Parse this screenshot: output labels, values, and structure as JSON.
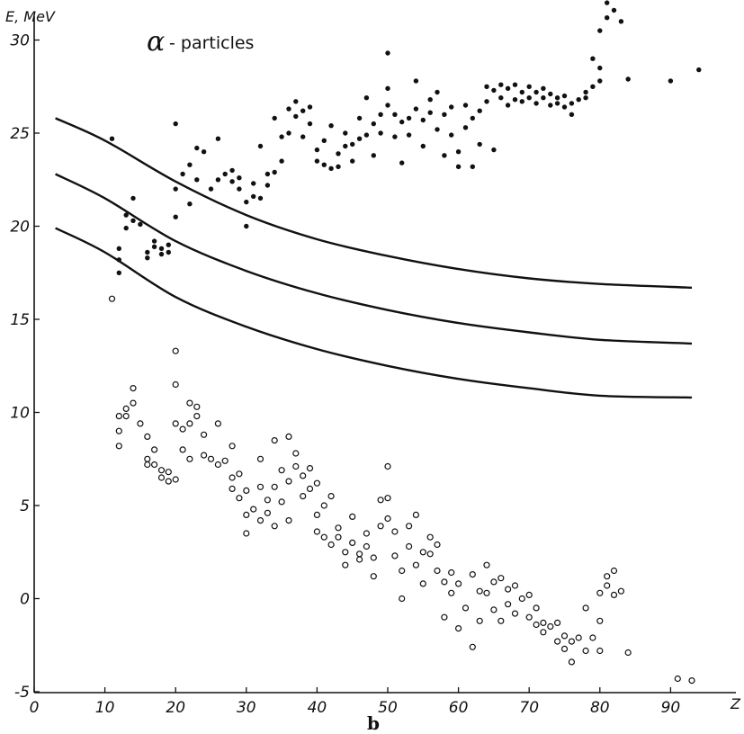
{
  "chart_data": {
    "type": "scatter",
    "title": "",
    "xlabel": "Z",
    "ylabel": "E, MeV",
    "caption": "b",
    "xlim": [
      0,
      95
    ],
    "ylim": [
      -5,
      32
    ],
    "x_ticks": [
      "0",
      "10",
      "20",
      "30",
      "40",
      "50",
      "60",
      "70",
      "80",
      "90"
    ],
    "y_ticks": [
      "-5",
      "0",
      "5",
      "10",
      "15",
      "20",
      "25",
      "30"
    ],
    "grid": false,
    "annotation": {
      "symbol": "α",
      "text": "- particles"
    },
    "series": [
      {
        "marker": "filled-circle",
        "points": [
          [
            11,
            24.7
          ],
          [
            12,
            17.5
          ],
          [
            12,
            18.2
          ],
          [
            12,
            18.8
          ],
          [
            13,
            19.9
          ],
          [
            13,
            20.6
          ],
          [
            14,
            21.5
          ],
          [
            14,
            20.3
          ],
          [
            15,
            20.1
          ],
          [
            16,
            18.3
          ],
          [
            16,
            18.6
          ],
          [
            17,
            18.9
          ],
          [
            17,
            19.2
          ],
          [
            18,
            18.5
          ],
          [
            18,
            18.8
          ],
          [
            19,
            18.6
          ],
          [
            19,
            19.0
          ],
          [
            20,
            20.5
          ],
          [
            20,
            22.0
          ],
          [
            20,
            25.5
          ],
          [
            21,
            22.8
          ],
          [
            22,
            21.2
          ],
          [
            22,
            23.3
          ],
          [
            23,
            22.5
          ],
          [
            23,
            24.2
          ],
          [
            24,
            24.0
          ],
          [
            25,
            22.0
          ],
          [
            26,
            22.5
          ],
          [
            26,
            24.7
          ],
          [
            27,
            22.8
          ],
          [
            28,
            22.4
          ],
          [
            28,
            23.0
          ],
          [
            29,
            22.0
          ],
          [
            29,
            22.6
          ],
          [
            30,
            20.0
          ],
          [
            30,
            21.3
          ],
          [
            31,
            21.6
          ],
          [
            31,
            22.3
          ],
          [
            32,
            21.5
          ],
          [
            32,
            24.3
          ],
          [
            33,
            22.2
          ],
          [
            33,
            22.8
          ],
          [
            34,
            22.9
          ],
          [
            34,
            25.8
          ],
          [
            35,
            23.5
          ],
          [
            35,
            24.8
          ],
          [
            36,
            26.3
          ],
          [
            36,
            25.0
          ],
          [
            37,
            26.7
          ],
          [
            37,
            25.9
          ],
          [
            38,
            26.2
          ],
          [
            38,
            24.8
          ],
          [
            39,
            26.4
          ],
          [
            39,
            25.5
          ],
          [
            40,
            23.5
          ],
          [
            40,
            24.1
          ],
          [
            41,
            23.3
          ],
          [
            41,
            24.6
          ],
          [
            42,
            23.1
          ],
          [
            42,
            25.4
          ],
          [
            43,
            23.9
          ],
          [
            43,
            23.2
          ],
          [
            44,
            24.3
          ],
          [
            44,
            25.0
          ],
          [
            45,
            23.5
          ],
          [
            45,
            24.4
          ],
          [
            46,
            24.7
          ],
          [
            46,
            25.8
          ],
          [
            47,
            26.9
          ],
          [
            47,
            24.9
          ],
          [
            48,
            25.5
          ],
          [
            48,
            23.8
          ],
          [
            49,
            26.0
          ],
          [
            49,
            25.0
          ],
          [
            50,
            29.3
          ],
          [
            50,
            27.4
          ],
          [
            50,
            26.5
          ],
          [
            51,
            26.0
          ],
          [
            51,
            24.8
          ],
          [
            52,
            25.6
          ],
          [
            52,
            23.4
          ],
          [
            53,
            24.9
          ],
          [
            53,
            25.8
          ],
          [
            54,
            27.8
          ],
          [
            54,
            26.3
          ],
          [
            55,
            25.7
          ],
          [
            55,
            24.3
          ],
          [
            56,
            26.8
          ],
          [
            56,
            26.1
          ],
          [
            57,
            27.2
          ],
          [
            57,
            25.2
          ],
          [
            58,
            26.0
          ],
          [
            58,
            23.8
          ],
          [
            59,
            26.4
          ],
          [
            59,
            24.9
          ],
          [
            60,
            24.0
          ],
          [
            60,
            23.2
          ],
          [
            61,
            26.5
          ],
          [
            61,
            25.3
          ],
          [
            62,
            23.2
          ],
          [
            62,
            25.8
          ],
          [
            63,
            26.2
          ],
          [
            63,
            24.4
          ],
          [
            64,
            27.5
          ],
          [
            64,
            26.7
          ],
          [
            65,
            27.3
          ],
          [
            65,
            24.1
          ],
          [
            66,
            27.6
          ],
          [
            66,
            26.9
          ],
          [
            67,
            27.4
          ],
          [
            67,
            26.5
          ],
          [
            68,
            27.6
          ],
          [
            68,
            26.8
          ],
          [
            69,
            27.2
          ],
          [
            69,
            26.7
          ],
          [
            70,
            27.5
          ],
          [
            70,
            26.9
          ],
          [
            71,
            27.2
          ],
          [
            71,
            26.6
          ],
          [
            72,
            27.4
          ],
          [
            72,
            26.9
          ],
          [
            73,
            27.1
          ],
          [
            73,
            26.5
          ],
          [
            74,
            26.9
          ],
          [
            74,
            26.6
          ],
          [
            75,
            27.0
          ],
          [
            75,
            26.4
          ],
          [
            76,
            26.6
          ],
          [
            76,
            26.0
          ],
          [
            77,
            26.8
          ],
          [
            78,
            27.2
          ],
          [
            78,
            26.9
          ],
          [
            79,
            29.0
          ],
          [
            79,
            27.5
          ],
          [
            80,
            27.8
          ],
          [
            80,
            28.5
          ],
          [
            80,
            30.5
          ],
          [
            81,
            31.2
          ],
          [
            81,
            32.0
          ],
          [
            82,
            32.5
          ],
          [
            82,
            31.6
          ],
          [
            83,
            31.0
          ],
          [
            84,
            27.9
          ],
          [
            90,
            27.8
          ],
          [
            94,
            28.4
          ]
        ]
      },
      {
        "marker": "open-circle",
        "points": [
          [
            11,
            16.1
          ],
          [
            12,
            9.8
          ],
          [
            12,
            8.2
          ],
          [
            12,
            9.0
          ],
          [
            13,
            10.2
          ],
          [
            13,
            9.8
          ],
          [
            14,
            11.3
          ],
          [
            14,
            10.5
          ],
          [
            15,
            9.4
          ],
          [
            16,
            8.7
          ],
          [
            16,
            7.5
          ],
          [
            16,
            7.2
          ],
          [
            17,
            7.2
          ],
          [
            17,
            8.0
          ],
          [
            18,
            6.9
          ],
          [
            18,
            6.5
          ],
          [
            19,
            6.8
          ],
          [
            19,
            6.3
          ],
          [
            20,
            6.4
          ],
          [
            20,
            9.4
          ],
          [
            20,
            11.5
          ],
          [
            20,
            13.3
          ],
          [
            21,
            8.0
          ],
          [
            21,
            9.1
          ],
          [
            22,
            10.5
          ],
          [
            22,
            9.4
          ],
          [
            22,
            7.5
          ],
          [
            23,
            10.3
          ],
          [
            23,
            9.8
          ],
          [
            24,
            8.8
          ],
          [
            24,
            7.7
          ],
          [
            25,
            7.5
          ],
          [
            26,
            9.4
          ],
          [
            26,
            7.2
          ],
          [
            27,
            7.4
          ],
          [
            28,
            8.2
          ],
          [
            28,
            6.5
          ],
          [
            28,
            5.9
          ],
          [
            29,
            6.7
          ],
          [
            29,
            5.4
          ],
          [
            30,
            4.5
          ],
          [
            30,
            3.5
          ],
          [
            30,
            5.8
          ],
          [
            31,
            4.8
          ],
          [
            32,
            6.0
          ],
          [
            32,
            4.2
          ],
          [
            32,
            7.5
          ],
          [
            33,
            5.3
          ],
          [
            33,
            4.6
          ],
          [
            34,
            8.5
          ],
          [
            34,
            6.0
          ],
          [
            34,
            3.9
          ],
          [
            35,
            6.9
          ],
          [
            35,
            5.2
          ],
          [
            36,
            8.7
          ],
          [
            36,
            6.3
          ],
          [
            36,
            4.2
          ],
          [
            37,
            7.8
          ],
          [
            37,
            7.1
          ],
          [
            38,
            6.6
          ],
          [
            38,
            5.5
          ],
          [
            39,
            7.0
          ],
          [
            39,
            5.9
          ],
          [
            40,
            6.2
          ],
          [
            40,
            4.5
          ],
          [
            40,
            3.6
          ],
          [
            41,
            5.0
          ],
          [
            41,
            3.3
          ],
          [
            42,
            5.5
          ],
          [
            42,
            2.9
          ],
          [
            43,
            3.8
          ],
          [
            43,
            3.3
          ],
          [
            44,
            2.5
          ],
          [
            44,
            1.8
          ],
          [
            45,
            4.4
          ],
          [
            45,
            3.0
          ],
          [
            46,
            2.4
          ],
          [
            46,
            2.1
          ],
          [
            47,
            3.5
          ],
          [
            47,
            2.8
          ],
          [
            48,
            2.2
          ],
          [
            48,
            1.2
          ],
          [
            49,
            5.3
          ],
          [
            49,
            3.9
          ],
          [
            50,
            7.1
          ],
          [
            50,
            5.4
          ],
          [
            50,
            4.3
          ],
          [
            51,
            3.6
          ],
          [
            51,
            2.3
          ],
          [
            52,
            0.0
          ],
          [
            52,
            1.5
          ],
          [
            53,
            3.9
          ],
          [
            53,
            2.8
          ],
          [
            54,
            4.5
          ],
          [
            54,
            1.8
          ],
          [
            55,
            2.5
          ],
          [
            55,
            0.8
          ],
          [
            56,
            3.3
          ],
          [
            56,
            2.4
          ],
          [
            57,
            2.9
          ],
          [
            57,
            1.5
          ],
          [
            58,
            0.9
          ],
          [
            58,
            -1.0
          ],
          [
            59,
            1.4
          ],
          [
            59,
            0.3
          ],
          [
            60,
            0.8
          ],
          [
            60,
            -1.6
          ],
          [
            61,
            -0.5
          ],
          [
            62,
            1.3
          ],
          [
            62,
            -2.6
          ],
          [
            63,
            0.4
          ],
          [
            63,
            -1.2
          ],
          [
            64,
            1.8
          ],
          [
            64,
            0.3
          ],
          [
            65,
            0.9
          ],
          [
            65,
            -0.6
          ],
          [
            66,
            1.1
          ],
          [
            66,
            -1.2
          ],
          [
            67,
            0.5
          ],
          [
            67,
            -0.3
          ],
          [
            68,
            0.7
          ],
          [
            68,
            -0.8
          ],
          [
            69,
            0.0
          ],
          [
            70,
            0.2
          ],
          [
            70,
            -1.0
          ],
          [
            71,
            -0.5
          ],
          [
            71,
            -1.4
          ],
          [
            72,
            -1.3
          ],
          [
            72,
            -1.8
          ],
          [
            73,
            -1.5
          ],
          [
            74,
            -1.3
          ],
          [
            74,
            -2.3
          ],
          [
            75,
            -2.0
          ],
          [
            75,
            -2.7
          ],
          [
            76,
            -3.4
          ],
          [
            76,
            -2.3
          ],
          [
            77,
            -2.1
          ],
          [
            78,
            -2.8
          ],
          [
            78,
            -0.5
          ],
          [
            79,
            -2.1
          ],
          [
            80,
            -2.8
          ],
          [
            80,
            0.3
          ],
          [
            80,
            -1.2
          ],
          [
            81,
            1.2
          ],
          [
            81,
            0.7
          ],
          [
            82,
            1.5
          ],
          [
            82,
            0.2
          ],
          [
            83,
            0.4
          ],
          [
            84,
            -2.9
          ],
          [
            91,
            -4.3
          ],
          [
            93,
            -4.4
          ]
        ]
      }
    ],
    "curves": [
      {
        "points": [
          [
            3,
            25.8
          ],
          [
            10,
            24.6
          ],
          [
            20,
            22.4
          ],
          [
            30,
            20.6
          ],
          [
            40,
            19.3
          ],
          [
            50,
            18.4
          ],
          [
            60,
            17.7
          ],
          [
            70,
            17.2
          ],
          [
            80,
            16.9
          ],
          [
            93,
            16.7
          ]
        ]
      },
      {
        "points": [
          [
            3,
            22.8
          ],
          [
            10,
            21.5
          ],
          [
            20,
            19.2
          ],
          [
            30,
            17.6
          ],
          [
            40,
            16.4
          ],
          [
            50,
            15.5
          ],
          [
            60,
            14.8
          ],
          [
            70,
            14.3
          ],
          [
            80,
            13.9
          ],
          [
            93,
            13.7
          ]
        ]
      },
      {
        "points": [
          [
            3,
            19.9
          ],
          [
            10,
            18.6
          ],
          [
            20,
            16.2
          ],
          [
            30,
            14.6
          ],
          [
            40,
            13.4
          ],
          [
            50,
            12.5
          ],
          [
            60,
            11.8
          ],
          [
            70,
            11.3
          ],
          [
            80,
            10.9
          ],
          [
            93,
            10.8
          ]
        ]
      }
    ]
  }
}
